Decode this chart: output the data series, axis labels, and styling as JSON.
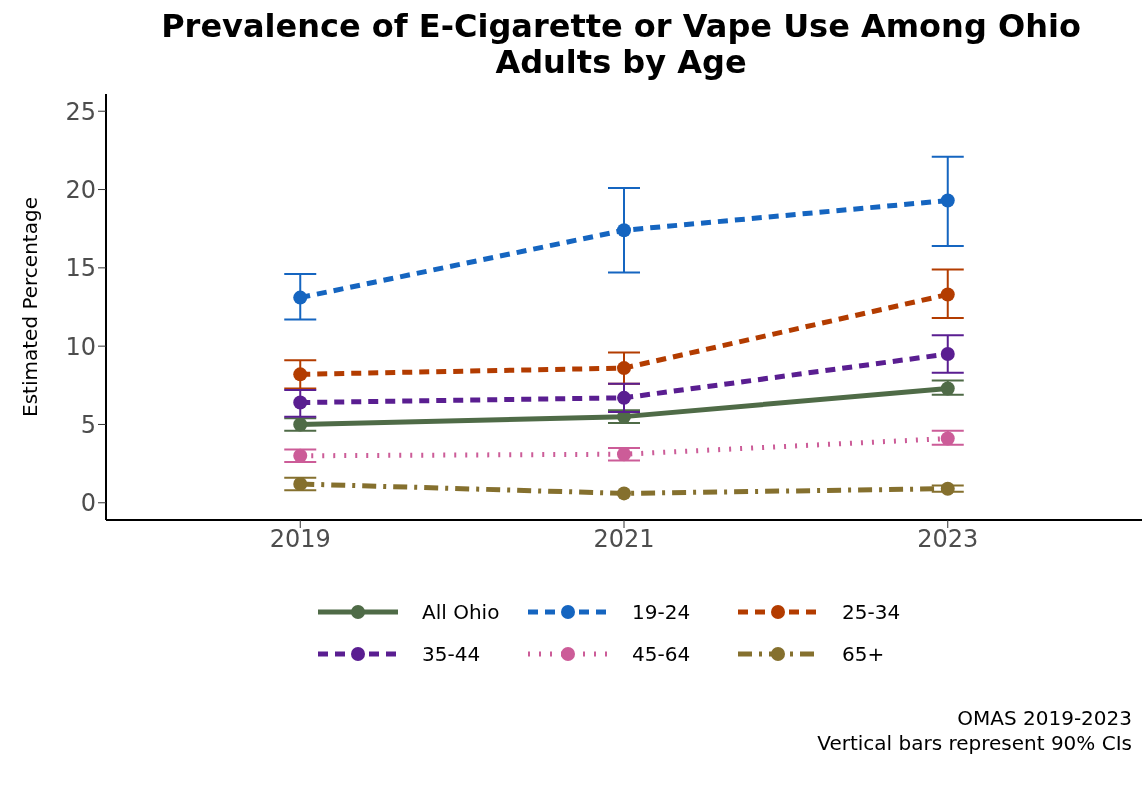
{
  "chart_data": {
    "type": "line",
    "title": "Prevalence of E-Cigarette or Vape Use Among Ohio Adults by Age",
    "ylabel": "Estimated Percentage",
    "x": [
      2019,
      2021,
      2023
    ],
    "xlim": [
      2017.8,
      2024.2
    ],
    "xticks": [
      2019,
      2021,
      2023
    ],
    "ylim": [
      -1.1,
      26.1
    ],
    "yticks": [
      0,
      5,
      10,
      15,
      20,
      25
    ],
    "grid": false,
    "legend": "bottom",
    "marker": "circle",
    "series": [
      {
        "name": "All Ohio",
        "color": "#4f6b47",
        "line_style": "solid",
        "values": [
          5.0,
          5.5,
          7.3
        ],
        "errors": [
          [
            4.6,
            5.4
          ],
          [
            5.1,
            5.9
          ],
          [
            6.9,
            7.8
          ]
        ]
      },
      {
        "name": "19-24",
        "color": "#1565c0",
        "line_style": "dashed",
        "values": [
          13.1,
          17.4,
          19.3
        ],
        "errors": [
          [
            11.7,
            14.6
          ],
          [
            14.7,
            20.1
          ],
          [
            16.4,
            22.1
          ]
        ]
      },
      {
        "name": "25-34",
        "color": "#b33c00",
        "line_style": "dashed",
        "values": [
          8.2,
          8.6,
          13.3
        ],
        "errors": [
          [
            7.3,
            9.1
          ],
          [
            7.6,
            9.6
          ],
          [
            11.8,
            14.9
          ]
        ]
      },
      {
        "name": "35-44",
        "color": "#5a1e91",
        "line_style": "dashed",
        "values": [
          6.4,
          6.7,
          9.5
        ],
        "errors": [
          [
            5.5,
            7.2
          ],
          [
            5.8,
            7.6
          ],
          [
            8.3,
            10.7
          ]
        ]
      },
      {
        "name": "45-64",
        "color": "#cc5c98",
        "line_style": "dotted",
        "values": [
          3.0,
          3.1,
          4.1
        ],
        "errors": [
          [
            2.6,
            3.4
          ],
          [
            2.7,
            3.5
          ],
          [
            3.7,
            4.6
          ]
        ]
      },
      {
        "name": "65+",
        "color": "#85702e",
        "line_style": "dashdot",
        "values": [
          1.2,
          0.6,
          0.9
        ],
        "errors": [
          [
            0.8,
            1.6
          ],
          null,
          [
            0.7,
            1.1
          ]
        ]
      }
    ],
    "annotations": [
      "OMAS 2019-2023",
      "Vertical bars represent 90% CIs"
    ]
  }
}
